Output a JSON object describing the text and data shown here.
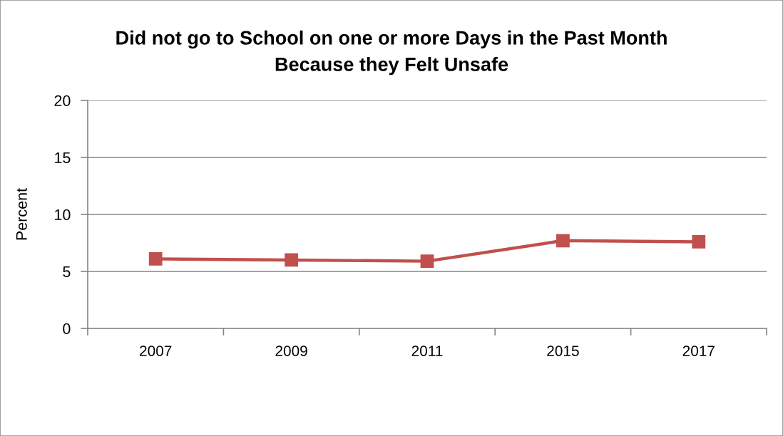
{
  "chart_data": {
    "type": "line",
    "title": "Did not go to School on one or more Days in the Past Month\nBecause they Felt Unsafe",
    "ylabel": "Percent",
    "categories": [
      "2007",
      "2009",
      "2011",
      "2015",
      "2017"
    ],
    "series": [
      {
        "color": "#c0504d",
        "values": [
          6.1,
          6.0,
          5.9,
          7.7,
          7.6
        ]
      }
    ],
    "ylim": [
      0,
      20
    ],
    "yticks": [
      0,
      5,
      10,
      15,
      20
    ],
    "grid": "y",
    "marker": "square",
    "line_style": "solid"
  }
}
